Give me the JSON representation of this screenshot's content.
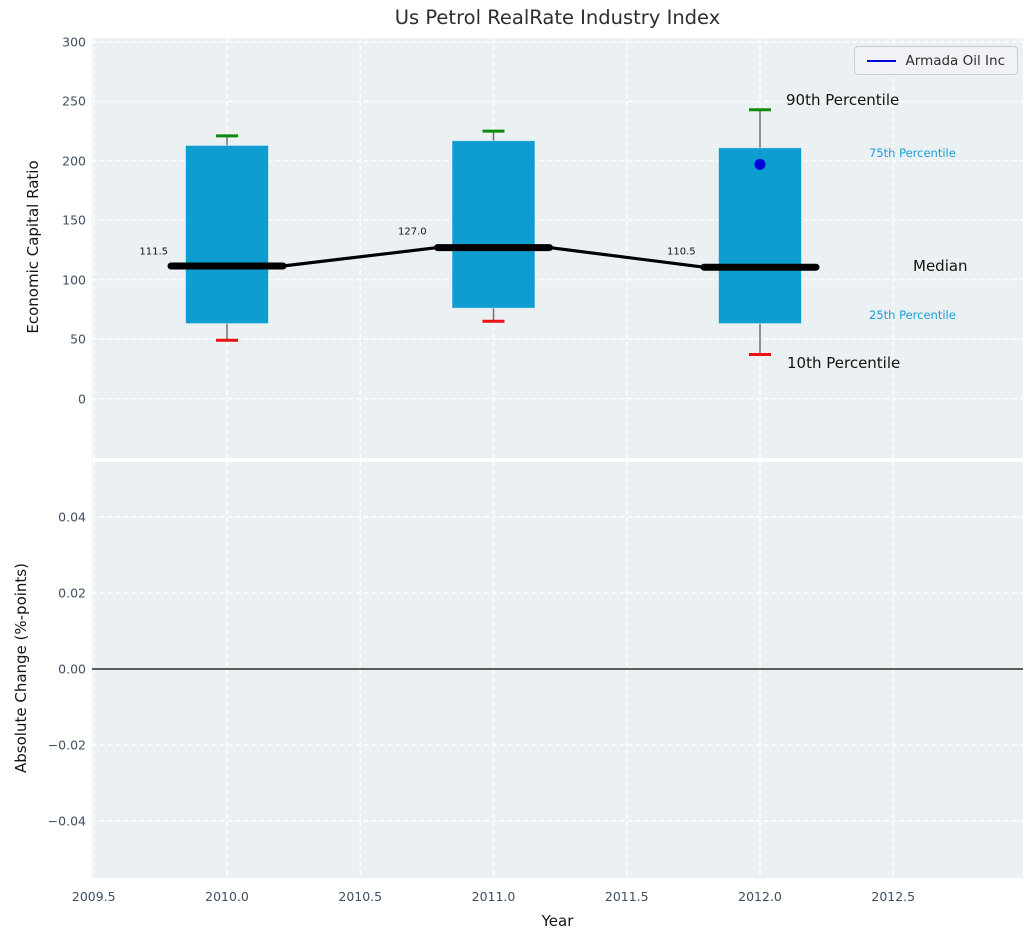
{
  "title": "Us Petrol RealRate Industry Index",
  "legend": {
    "label": "Armada Oil Inc",
    "line_color": "#0000e0"
  },
  "annotations": {
    "p90": "90th Percentile",
    "p75": "75th Percentile",
    "median": "Median",
    "p25": "25th Percentile",
    "p10": "10th Percentile"
  },
  "colors": {
    "axes_bg": "#ebf0f2",
    "grid": "#ffffff",
    "bar": "#0f9cd1",
    "whisker": "#707070",
    "cap_90th": "#0d8a0d",
    "cap_10th": "#ee1111",
    "median_line": "#000000",
    "company_dot": "#0000dd",
    "zero_line": "#000000",
    "tick_label": "#3e5063",
    "percentile_label": "#1c9fd6"
  },
  "chart_data": [
    {
      "type": "bar",
      "subtype": "percentile-box-bars",
      "title": "Us Petrol RealRate Industry Index",
      "ylabel": "Economic Capital Ratio",
      "ylim": [
        -51,
        303
      ],
      "ytick_values": [
        300,
        250,
        200,
        150,
        100,
        50,
        0
      ],
      "ytick_labels": [
        "300",
        "250",
        "200",
        "150",
        "100",
        "50",
        "0"
      ],
      "grid": true,
      "categories": [
        2010,
        2011,
        2012
      ],
      "series": [
        {
          "name": "10th Percentile",
          "values": [
            49,
            65,
            37
          ]
        },
        {
          "name": "25th Percentile",
          "values": [
            63,
            76,
            63
          ]
        },
        {
          "name": "Median",
          "values": [
            111.5,
            127.0,
            110.5
          ]
        },
        {
          "name": "75th Percentile",
          "values": [
            213,
            217,
            211
          ]
        },
        {
          "name": "90th Percentile",
          "values": [
            221,
            225,
            243
          ]
        }
      ],
      "median_labels": [
        "111.5",
        "127.0",
        "110.5"
      ],
      "company_point": {
        "name": "Armada Oil Inc",
        "x": 2012,
        "y": 197
      },
      "legend_position": "upper right"
    },
    {
      "type": "line",
      "ylabel": "Absolute Change (%-points)",
      "xlabel": "Year",
      "ylim": [
        -0.055,
        0.0545
      ],
      "ytick_values": [
        0.04,
        0.02,
        0.0,
        -0.02,
        -0.04
      ],
      "ytick_labels": [
        "0.04",
        "0.02",
        "0.00",
        "−0.02",
        "−0.04"
      ],
      "xtick_values": [
        2009.5,
        2010.0,
        2010.5,
        2011.0,
        2011.5,
        2012.0,
        2012.5
      ],
      "xtick_labels": [
        "2009.5",
        "2010.0",
        "2010.5",
        "2011.0",
        "2011.5",
        "2012.0",
        "2012.5"
      ],
      "grid": true,
      "zero_line": 0.0,
      "series": []
    }
  ]
}
